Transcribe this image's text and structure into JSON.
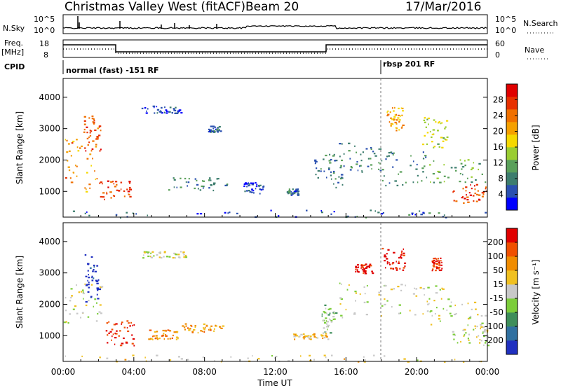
{
  "header": {
    "station": "Christmas Valley West (fitACF)",
    "beam": "Beam 20",
    "date": "17/Mar/2016"
  },
  "time_axis": {
    "label": "Time UT",
    "ticks": [
      "00:00",
      "04:00",
      "08:00",
      "12:00",
      "16:00",
      "20:00",
      "00:00"
    ],
    "range_hours": [
      0,
      24
    ]
  },
  "status_panels": {
    "nsky": {
      "label": "N.Sky",
      "ticks": [
        "10^5",
        "10^0"
      ]
    },
    "nsearch": {
      "label": "N.Search",
      "ticks": [
        "10^5",
        "10^0"
      ]
    },
    "freq": {
      "label_line1": "Freq.",
      "label_line2": "[MHz]",
      "ticks": [
        "18",
        "8"
      ]
    },
    "nave": {
      "label": "Nave",
      "ticks": [
        "60",
        "0"
      ]
    },
    "cpid": {
      "label": "CPID",
      "programs": [
        {
          "name": "normal (fast) -151 RF",
          "start_hour": 0,
          "end_hour": 18
        },
        {
          "name": "rbsp 201 RF",
          "start_hour": 18,
          "end_hour": 24
        }
      ]
    }
  },
  "chart_data": [
    {
      "type": "heatmap",
      "quantity": "power",
      "ylabel": "Slant Range [km]",
      "ylim": [
        180,
        4600
      ],
      "yticks": [
        1000,
        2000,
        3000,
        4000
      ],
      "xlim": [
        0,
        24
      ],
      "colorbar": {
        "label": "Power [dB]",
        "range": [
          0,
          32
        ],
        "ticks": [
          "4",
          "8",
          "12",
          "16",
          "20",
          "24",
          "28"
        ],
        "colors": [
          "#0000ff",
          "#2a50b0",
          "#3d7d6e",
          "#5aa05a",
          "#9acd32",
          "#f5d800",
          "#f5a000",
          "#f07000",
          "#e83000",
          "#e00000"
        ]
      },
      "regions": [
        {
          "t0": 0.0,
          "t1": 1.9,
          "r0": 1000,
          "r1": 2700,
          "level": 0.7
        },
        {
          "t0": 1.1,
          "t1": 2.1,
          "r0": 2300,
          "r1": 3500,
          "level": 0.8
        },
        {
          "t0": 2.0,
          "t1": 3.9,
          "r0": 750,
          "r1": 1350,
          "level": 0.85
        },
        {
          "t0": 4.4,
          "t1": 6.8,
          "r0": 3500,
          "r1": 3750,
          "level": 0.12
        },
        {
          "t0": 5.8,
          "t1": 9.3,
          "r0": 1050,
          "r1": 1450,
          "level": 0.25
        },
        {
          "t0": 8.2,
          "t1": 8.9,
          "r0": 2900,
          "r1": 3100,
          "level": 0.2
        },
        {
          "t0": 10.2,
          "t1": 11.3,
          "r0": 950,
          "r1": 1300,
          "level": 0.15
        },
        {
          "t0": 12.6,
          "t1": 13.3,
          "r0": 900,
          "r1": 1100,
          "level": 0.2
        },
        {
          "t0": 14.2,
          "t1": 15.8,
          "r0": 1100,
          "r1": 2200,
          "level": 0.25
        },
        {
          "t0": 15.5,
          "t1": 18.0,
          "r0": 1600,
          "r1": 2600,
          "level": 0.25
        },
        {
          "t0": 17.8,
          "t1": 20.5,
          "r0": 1200,
          "r1": 2300,
          "level": 0.25
        },
        {
          "t0": 18.3,
          "t1": 19.2,
          "r0": 2900,
          "r1": 3700,
          "level": 0.65
        },
        {
          "t0": 20.3,
          "t1": 21.7,
          "r0": 2400,
          "r1": 3400,
          "level": 0.5
        },
        {
          "t0": 20.5,
          "t1": 24.0,
          "r0": 1300,
          "r1": 2100,
          "level": 0.35
        },
        {
          "t0": 22.0,
          "t1": 24.0,
          "r0": 650,
          "r1": 1300,
          "level": 0.85
        },
        {
          "t0": 0.0,
          "t1": 24.0,
          "r0": 180,
          "r1": 420,
          "level": 0.2
        }
      ]
    },
    {
      "type": "heatmap",
      "quantity": "velocity",
      "ylabel": "Slant Range [km]",
      "ylim": [
        180,
        4600
      ],
      "yticks": [
        1000,
        2000,
        3000,
        4000
      ],
      "xlim": [
        0,
        24
      ],
      "colorbar": {
        "label": "Velocity [m s⁻¹]",
        "ticks": [
          "200",
          "100",
          "50",
          "15",
          "-15",
          "-50",
          "-100",
          "-200"
        ],
        "colors": [
          "#2030c0",
          "#3070a0",
          "#3e8e5a",
          "#7ccd3a",
          "#c8c8c8",
          "#f0c020",
          "#f08c00",
          "#f05000",
          "#e00000"
        ]
      },
      "regions": [
        {
          "t0": 0.0,
          "t1": 2.2,
          "r0": 1300,
          "r1": 2700,
          "level": 0.5
        },
        {
          "t0": 1.2,
          "t1": 2.0,
          "r0": 2100,
          "r1": 3600,
          "level": 0.05
        },
        {
          "t0": 2.4,
          "t1": 4.0,
          "r0": 700,
          "r1": 1500,
          "level": 0.9
        },
        {
          "t0": 4.8,
          "t1": 6.5,
          "r0": 900,
          "r1": 1200,
          "level": 0.7
        },
        {
          "t0": 6.7,
          "t1": 9.0,
          "r0": 1100,
          "r1": 1400,
          "level": 0.68
        },
        {
          "t0": 4.4,
          "t1": 7.0,
          "r0": 3500,
          "r1": 3700,
          "level": 0.5
        },
        {
          "t0": 13.0,
          "t1": 15.0,
          "r0": 900,
          "r1": 1100,
          "level": 0.6
        },
        {
          "t0": 14.6,
          "t1": 15.4,
          "r0": 1100,
          "r1": 2000,
          "level": 0.4
        },
        {
          "t0": 15.5,
          "t1": 21.5,
          "r0": 1600,
          "r1": 2700,
          "level": 0.5
        },
        {
          "t0": 16.5,
          "t1": 17.5,
          "r0": 3000,
          "r1": 3300,
          "level": 0.95
        },
        {
          "t0": 18.0,
          "t1": 19.3,
          "r0": 3100,
          "r1": 3800,
          "level": 0.95
        },
        {
          "t0": 20.8,
          "t1": 21.4,
          "r0": 3100,
          "r1": 3500,
          "level": 0.9
        },
        {
          "t0": 20.5,
          "t1": 24.0,
          "r0": 1300,
          "r1": 2200,
          "level": 0.5
        },
        {
          "t0": 22.0,
          "t1": 24.0,
          "r0": 700,
          "r1": 1300,
          "level": 0.5
        },
        {
          "t0": 0.0,
          "t1": 24.0,
          "r0": 180,
          "r1": 420,
          "level": 0.55
        }
      ]
    }
  ]
}
